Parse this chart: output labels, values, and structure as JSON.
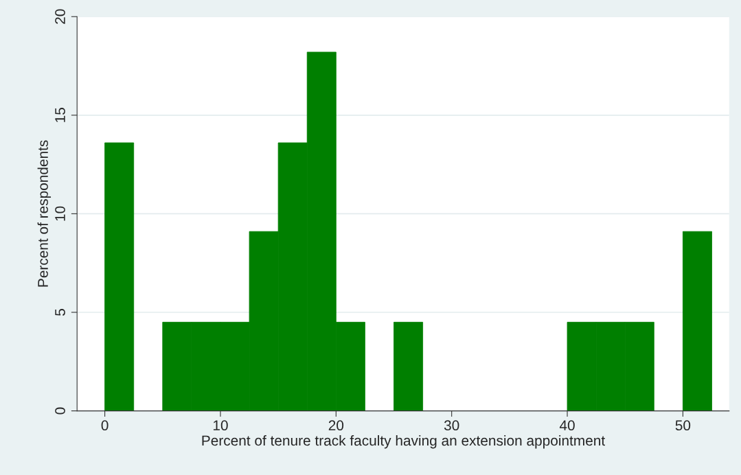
{
  "chart_data": {
    "type": "histogram",
    "xlabel": "Percent of tenure track faculty having an extension appointment",
    "ylabel": "Percent of respondents",
    "bins": [
      0,
      2.5,
      5,
      7.5,
      10,
      12.5,
      15,
      17.5,
      20,
      22.5,
      25,
      27.5,
      30,
      32.5,
      35,
      37.5,
      40,
      42.5,
      45,
      47.5,
      50,
      52.5
    ],
    "values": [
      13.6,
      0,
      4.5,
      4.5,
      4.5,
      9.1,
      13.6,
      18.2,
      4.5,
      0,
      4.5,
      0,
      0,
      0,
      0,
      0,
      4.5,
      4.5,
      4.5,
      0,
      9.1
    ],
    "color": "#007f00",
    "xlim": [
      -2.4,
      54
    ],
    "ylim": [
      0,
      20
    ],
    "xticks": [
      0,
      10,
      20,
      30,
      40,
      50
    ],
    "yticks": [
      0,
      5,
      10,
      15,
      20
    ],
    "grid": "y"
  }
}
